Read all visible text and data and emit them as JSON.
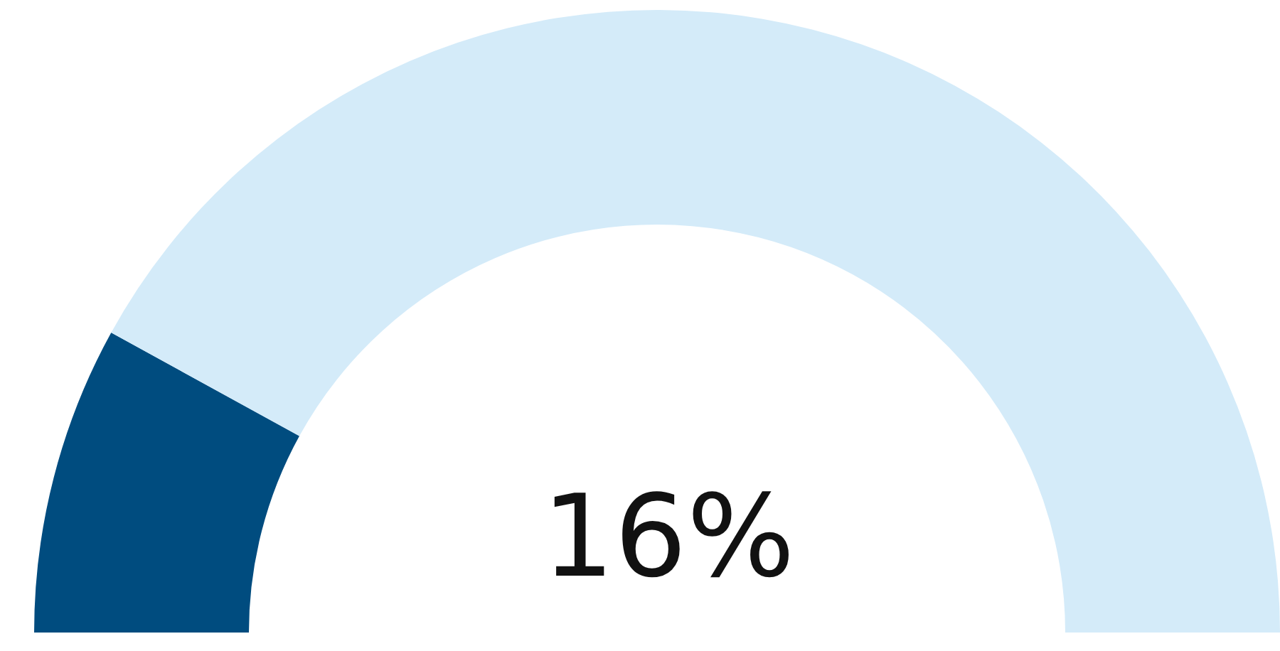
{
  "chart_data": {
    "type": "donut",
    "categories": [
      null,
      null
    ],
    "values": [
      16,
      84
    ],
    "colors": [
      "#004c7f",
      "#d4ebf9"
    ],
    "annotations": [
      "16%"
    ]
  }
}
